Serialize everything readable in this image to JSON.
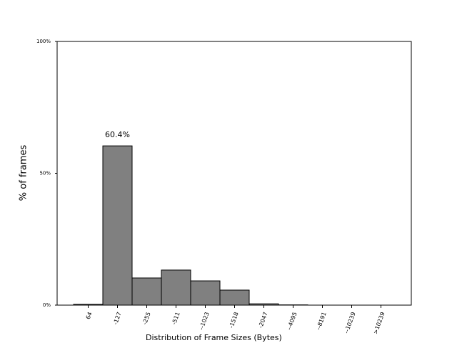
{
  "chart_data": {
    "type": "bar",
    "categories": [
      "64",
      "-127",
      "-255",
      "-511",
      "--1023",
      "-1518",
      "-2047",
      "--4095",
      "--8191",
      "--10239",
      ">10239"
    ],
    "values": [
      0.3,
      60.4,
      10.3,
      13.3,
      9.2,
      5.7,
      0.5,
      0.1,
      0,
      0,
      0
    ],
    "value_labels": [
      null,
      "60.4%",
      null,
      null,
      null,
      null,
      null,
      null,
      null,
      null,
      null
    ],
    "color": "#808080",
    "xlabel": "Distribution of Frame Sizes (Bytes)",
    "ylabel": "% of frames",
    "ylim": [
      0,
      100
    ],
    "yticks": [
      {
        "value": 0,
        "label": "0%"
      },
      {
        "value": 50,
        "label": "50%"
      },
      {
        "value": 100,
        "label": "100%"
      }
    ]
  }
}
